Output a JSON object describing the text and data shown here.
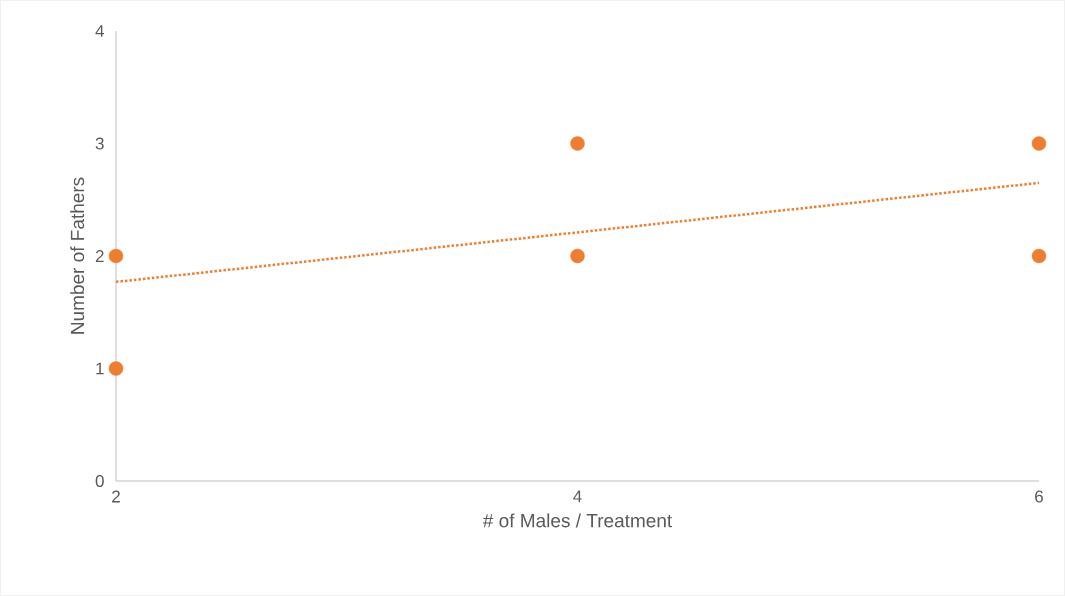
{
  "chart_data": {
    "type": "scatter",
    "xlabel": "# of Males / Treatment",
    "ylabel": "Number of Fathers",
    "x": [
      2,
      2,
      4,
      4,
      6,
      6
    ],
    "xlim": [
      2,
      6
    ],
    "xticks": [
      2,
      4,
      6
    ],
    "ylim": [
      0,
      4
    ],
    "yticks": [
      0,
      1,
      2,
      3,
      4
    ],
    "series": [
      {
        "type": "scatter",
        "color": "#ed7d31",
        "marker": "circle",
        "values": [
          2,
          1,
          3,
          2,
          3,
          2
        ]
      },
      {
        "type": "line",
        "color": "#ed7d31",
        "x": [
          2,
          6
        ],
        "values": [
          1.77,
          2.65
        ],
        "line_style": "dotted",
        "marker": "none"
      }
    ]
  }
}
